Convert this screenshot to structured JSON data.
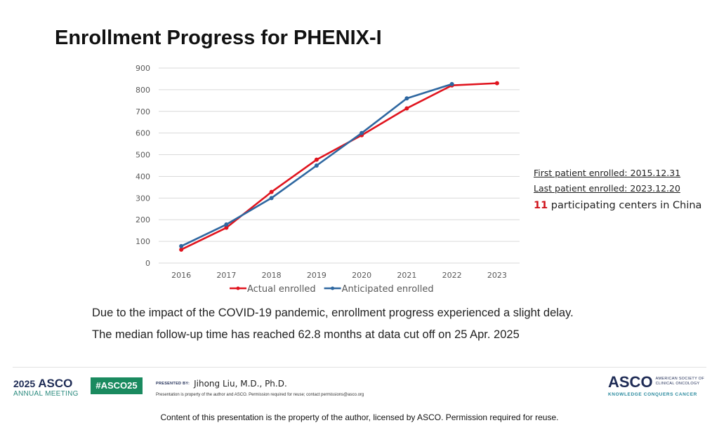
{
  "slide": {
    "title": "Enrollment Progress for PHENIX-I",
    "side_notes": {
      "first_patient": "First patient enrolled: 2015.12.31",
      "last_patient": "Last patient enrolled: 2023.12.20",
      "centers_count": "11",
      "centers_text": " participating centers in China"
    },
    "bullets": [
      "Due to the impact of the COVID-19 pandemic, enrollment progress experienced a slight delay.",
      "The median follow-up time has reached 62.8 months at data cut off on 25 Apr. 2025"
    ]
  },
  "footer": {
    "meeting_year": "2025",
    "meeting_brand": "ASCO",
    "meeting_sub": "ANNUAL MEETING",
    "hashtag": "#ASCO25",
    "presented_by_label": "PRESENTED BY:",
    "presenter": "Jihong Liu, M.D., Ph.D.",
    "permission": "Presentation is property of the author and ASCO. Permission required for reuse; contact permissions@asco.org",
    "org_brand": "ASCO",
    "org_name_line1": "AMERICAN SOCIETY OF",
    "org_name_line2": "CLINICAL ONCOLOGY",
    "org_tagline": "KNOWLEDGE CONQUERS CANCER"
  },
  "caption": "Content of this presentation is the property of the author, licensed by ASCO. Permission required for reuse.",
  "chart_data": {
    "type": "line",
    "title": "",
    "xlabel": "",
    "ylabel": "",
    "categories": [
      "2016",
      "2017",
      "2018",
      "2019",
      "2020",
      "2021",
      "2022",
      "2023"
    ],
    "ylim": [
      0,
      900
    ],
    "yticks": [
      0,
      100,
      200,
      300,
      400,
      500,
      600,
      700,
      800,
      900
    ],
    "grid": true,
    "legend_position": "bottom",
    "series": [
      {
        "name": "Actual enrolled",
        "color": "#e0141e",
        "values": [
          62,
          163,
          328,
          477,
          590,
          714,
          820,
          830
        ]
      },
      {
        "name": "Anticipated enrolled",
        "color": "#2e67a0",
        "values": [
          78,
          178,
          300,
          450,
          600,
          760,
          826,
          null
        ]
      }
    ]
  }
}
